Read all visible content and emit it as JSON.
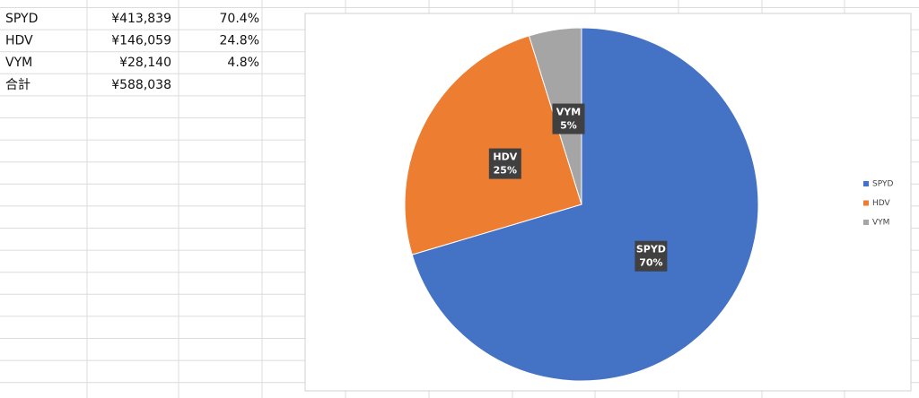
{
  "table": {
    "rows": [
      [
        "SPYD",
        "¥413,839",
        "70.4%"
      ],
      [
        "HDV",
        "¥146,059",
        "24.8%"
      ],
      [
        "VYM",
        "¥28,140",
        "4.8%"
      ],
      [
        "合計",
        "¥588,038"
      ]
    ]
  },
  "chart_data": {
    "type": "pie",
    "categories": [
      "SPYD",
      "HDV",
      "VYM"
    ],
    "values": [
      70.4,
      24.8,
      4.8
    ],
    "value_labels": [
      "70%",
      "25%",
      "5%"
    ],
    "colors": [
      "#4472c4",
      "#ed7d31",
      "#a5a5a5"
    ],
    "legend": "right"
  }
}
